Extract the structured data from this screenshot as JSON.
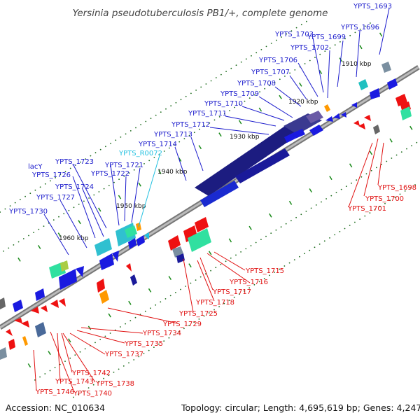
{
  "title": "Yersinia pseudotuberculosis PB1/+, complete genome",
  "footer": {
    "accession": "Accession: NC_010634",
    "summary": "Topology: circular; Length: 4,695,619 bp; Genes: 4,247"
  },
  "kbp_marks": [
    "1910 kbp",
    "1920 kbp",
    "1930 kbp",
    "1940 kbp",
    "1950 kbp",
    "1960 kbp"
  ],
  "colors": {
    "forward_label": "#1a1acc",
    "reverse_label": "#e01010",
    "rna_label": "#20c0e0",
    "backbone": "#888888",
    "tick": "#1a8a1a"
  },
  "forward_labels": [
    "YPTS_1693",
    "YPTS_1696",
    "YPTS_1699",
    "YPTS_1702",
    "YPTS_1703",
    "YPTS_1706",
    "YPTS_1707",
    "YPTS_1708",
    "YPTS_1709",
    "YPTS_1710",
    "YPTS_1711",
    "YPTS_1712",
    "YPTS_1713",
    "YPTS_1714",
    "YPTS_1721",
    "YPTS_1722",
    "YPTS_1723",
    "lacY",
    "YPTS_1726",
    "YPTS_1724",
    "YPTS_1727",
    "YPTS_1730"
  ],
  "rna_labels": [
    "YPTS_R0072"
  ],
  "reverse_labels": [
    "YPTS_1698",
    "YPTS_1700",
    "YPTS_1701",
    "YPTS_1715",
    "YPTS_1716",
    "YPTS_1717",
    "YPTS_1718",
    "YPTS_1725",
    "YPTS_1729",
    "YPTS_1734",
    "YPTS_1735",
    "YPTS_1737",
    "YPTS_1742",
    "YPTS_1743",
    "YPTS_1738",
    "YPTS_1740",
    "YPTS_1746"
  ]
}
